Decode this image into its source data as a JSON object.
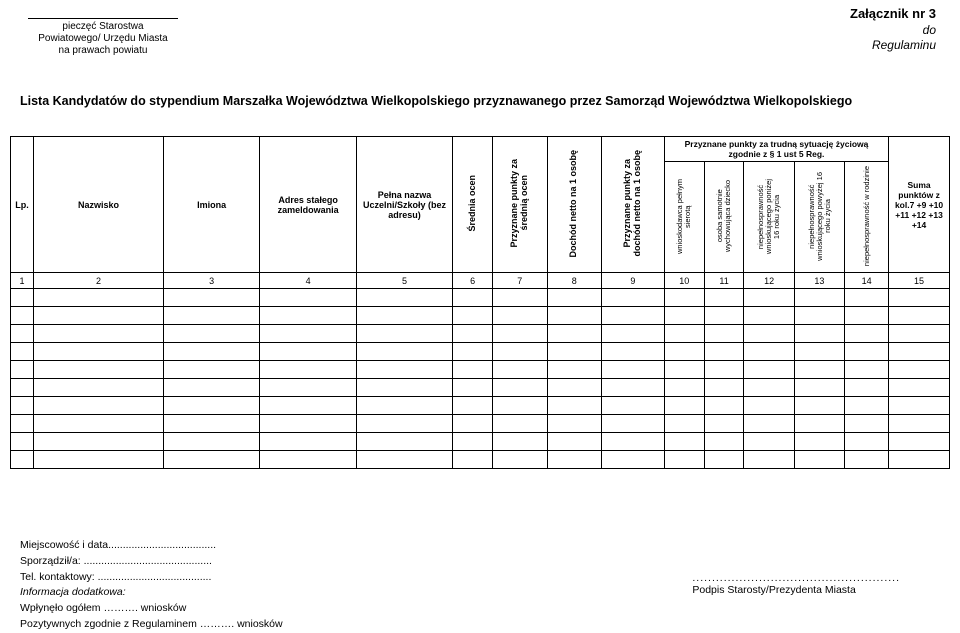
{
  "stamp": {
    "line1": "pieczęć Starostwa",
    "line2": "Powiatowego/ Urzędu Miasta",
    "line3": "na prawach powiatu"
  },
  "attachment": {
    "title": "Załącznik nr 3",
    "to": "do",
    "reg": "Regulaminu"
  },
  "title": "Lista Kandydatów do stypendium Marszałka Województwa Wielkopolskiego przyznawanego przez Samorząd Województwa Wielkopolskiego",
  "headers": {
    "lp": "Lp.",
    "nazwisko": "Nazwisko",
    "imiona": "Imiona",
    "adres": "Adres stałego zameldowania",
    "uczelnia": "Pełna nazwa Uczelni/Szkoły (bez adresu)",
    "srednia": "Średnia ocen",
    "pkt_srednia": "Przyznane punkty za średnią ocen",
    "dochod": "Dochód netto na 1 osobę",
    "pkt_dochod": "Przyznane punkty za dochód netto na 1 osobę",
    "group": "Przyznane punkty za trudną sytuację życiową zgodnie z § 1 ust 5 Reg.",
    "g1": "wnioskodawca pełnym sierotą",
    "g2": "osoba samotnie wychowująca dziecko",
    "g3": "niepełnosprawność wnioskującego poniżej 16 roku życia",
    "g4": "niepełnosprawność wnioskującego powyżej 16 roku życia",
    "g5": "niepełnosprawność w rodzinie",
    "suma": "Suma punktów z kol.7 +9 +10 +11 +12 +13 +14"
  },
  "nums": [
    "1",
    "2",
    "3",
    "4",
    "5",
    "6",
    "7",
    "8",
    "9",
    "10",
    "11",
    "12",
    "13",
    "14",
    "15"
  ],
  "footer": {
    "l1": "Miejscowość i data.....................................",
    "l2": "Sporządził/a: ............................................",
    "l3": "Tel. kontaktowy: .......................................",
    "l4": "Informacja dodatkowa:",
    "l5": "Wpłynęło ogółem ………. wniosków",
    "l6": "Pozytywnych zgodnie z Regulaminem ………. wniosków"
  },
  "sign": {
    "dots": ".....................................................",
    "label": "Podpis Starosty/Prezydenta Miasta"
  },
  "empty_rows": 10
}
